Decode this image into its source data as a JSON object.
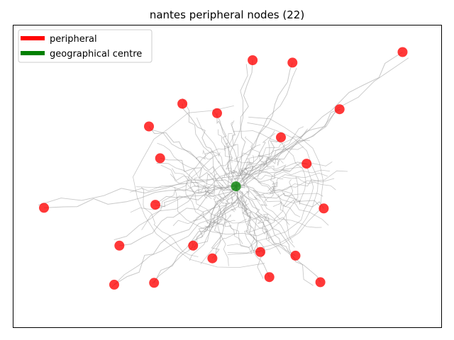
{
  "chart_data": {
    "type": "scatter",
    "title": "nantes peripheral nodes (22)",
    "xlabel": "",
    "ylabel": "",
    "axes_ticks": false,
    "grid": false,
    "legend": {
      "placement": "top-left",
      "entries": [
        {
          "label": "peripheral",
          "color": "#ff0000"
        },
        {
          "label": "geographical centre",
          "color": "#008000"
        }
      ]
    },
    "xlim": [
      0,
      100
    ],
    "ylim": [
      0,
      100
    ],
    "series": [
      {
        "name": "peripheral",
        "color": "#ff0000",
        "points": [
          [
            90.9,
            91.1
          ],
          [
            65.2,
            87.6
          ],
          [
            55.9,
            88.4
          ],
          [
            76.2,
            72.2
          ],
          [
            39.5,
            74.0
          ],
          [
            47.6,
            70.9
          ],
          [
            31.7,
            66.5
          ],
          [
            62.5,
            62.9
          ],
          [
            34.3,
            56.0
          ],
          [
            68.5,
            54.2
          ],
          [
            7.2,
            39.6
          ],
          [
            33.2,
            40.6
          ],
          [
            72.5,
            39.4
          ],
          [
            24.8,
            27.1
          ],
          [
            42.0,
            27.1
          ],
          [
            57.7,
            25.0
          ],
          [
            65.9,
            23.8
          ],
          [
            46.5,
            22.9
          ],
          [
            59.8,
            16.7
          ],
          [
            71.7,
            15.0
          ],
          [
            23.6,
            14.2
          ],
          [
            32.9,
            14.8
          ]
        ]
      },
      {
        "name": "geographical centre",
        "color": "#008000",
        "points": [
          [
            52.0,
            46.7
          ]
        ]
      }
    ]
  }
}
